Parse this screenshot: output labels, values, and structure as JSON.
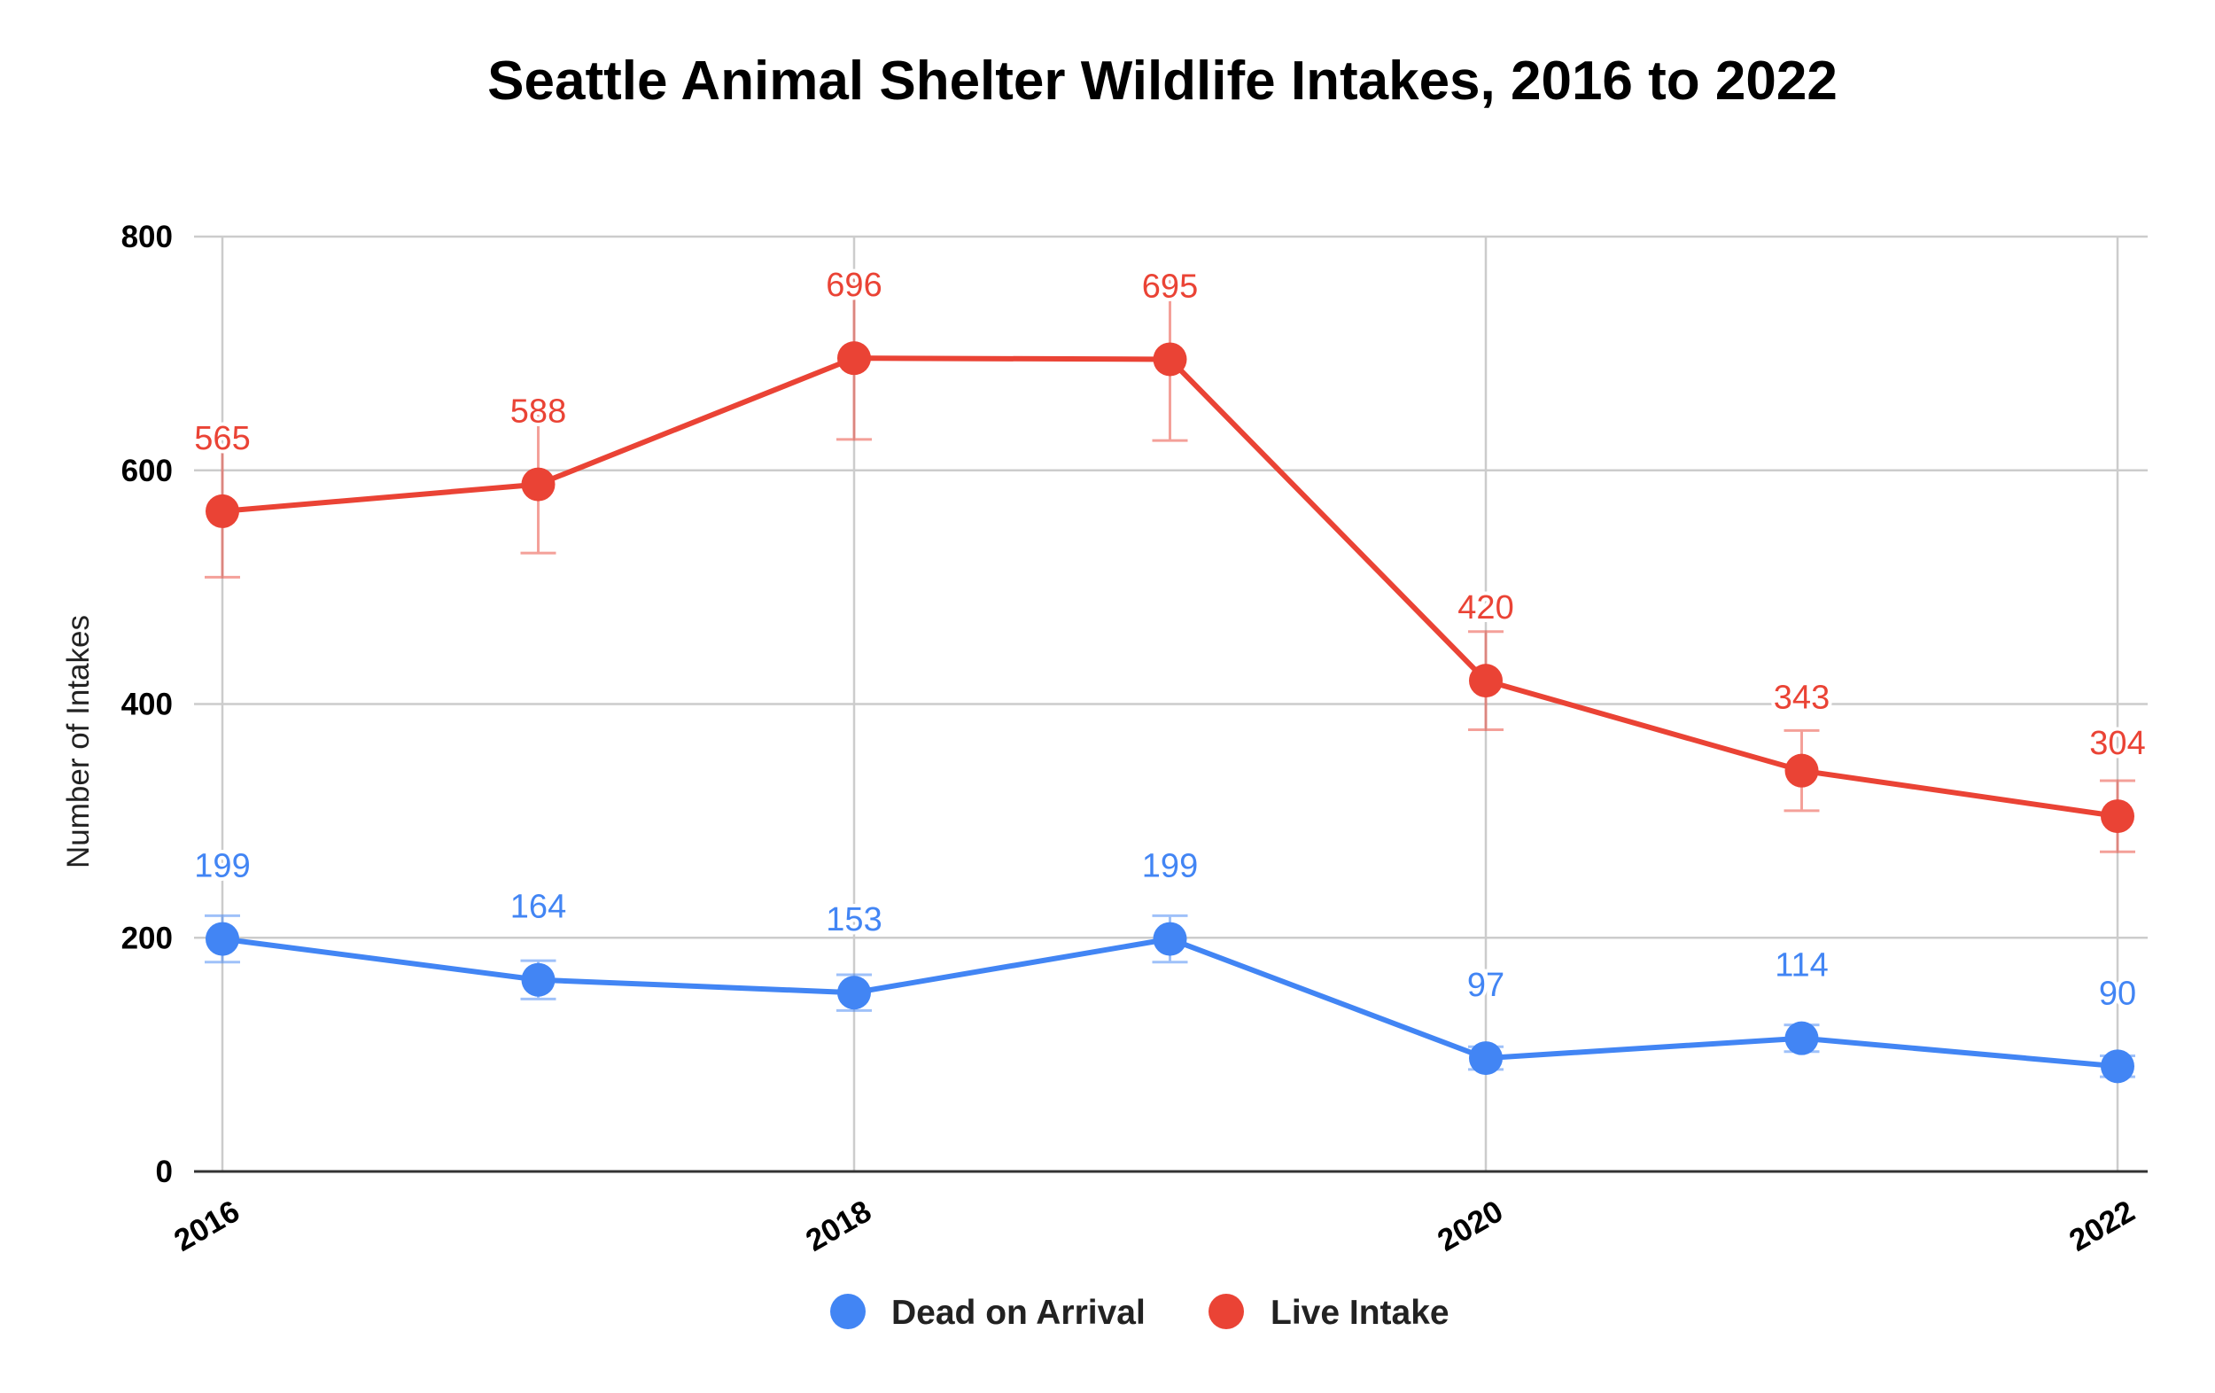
{
  "chart_data": {
    "type": "line",
    "title": "Seattle Animal Shelter Wildlife Intakes, 2016 to 2022",
    "xlabel": "",
    "ylabel": "Number of Intakes",
    "x": [
      2016,
      2017,
      2018,
      2019,
      2020,
      2021,
      2022
    ],
    "x_tick_labels": [
      "2016",
      "2018",
      "2020",
      "2022"
    ],
    "x_ticks": [
      2016,
      2018,
      2020,
      2022
    ],
    "y_ticks": [
      0,
      200,
      400,
      600,
      800
    ],
    "y_tick_labels": [
      "0",
      "200",
      "400",
      "600",
      "800"
    ],
    "ylim": [
      0,
      800
    ],
    "grid": true,
    "legend_position": "bottom",
    "error_bars": "10%",
    "series": [
      {
        "name": "Dead on Arrival",
        "color": "#4285f4",
        "values": [
          199,
          164,
          153,
          199,
          97,
          114,
          90
        ]
      },
      {
        "name": "Live Intake",
        "color": "#ea4335",
        "values": [
          565,
          588,
          696,
          695,
          420,
          343,
          304
        ]
      }
    ]
  }
}
